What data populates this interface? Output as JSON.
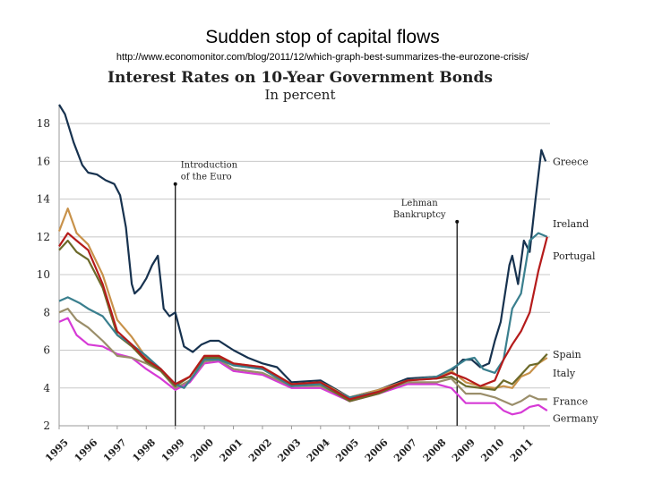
{
  "slide": {
    "title": "Sudden stop of capital flows",
    "url": "http://www.economonitor.com/blog/2011/12/which-graph-best-summarizes-the-eurozone-crisis/"
  },
  "chart_data": {
    "type": "line",
    "title": "Interest Rates on 10-Year Government Bonds",
    "subtitle": "In percent",
    "ylim": [
      2,
      19
    ],
    "yticks": [
      2,
      4,
      6,
      8,
      10,
      12,
      14,
      16,
      18
    ],
    "xlim": [
      1995,
      2011.9
    ],
    "xticks": [
      1995,
      1996,
      1997,
      1998,
      1999,
      2000,
      2001,
      2002,
      2003,
      2004,
      2005,
      2006,
      2007,
      2008,
      2009,
      2010,
      2011
    ],
    "grid": true,
    "annotations": [
      {
        "lines": [
          "Introduction",
          "of the Euro"
        ],
        "x": 1999.0,
        "y_top": 14.8
      },
      {
        "lines": [
          "Lehman",
          "Bankruptcy"
        ],
        "x": 2008.7,
        "y_top": 12.8
      }
    ],
    "series": [
      {
        "name": "Greece",
        "color": "#17324f",
        "x": [
          1995.0,
          1995.2,
          1995.5,
          1995.8,
          1996.0,
          1996.3,
          1996.6,
          1996.9,
          1997.1,
          1997.3,
          1997.5,
          1997.6,
          1997.8,
          1998.0,
          1998.2,
          1998.4,
          1998.6,
          1998.8,
          1999.0,
          1999.3,
          1999.6,
          1999.9,
          2000.2,
          2000.5,
          2001.0,
          2001.5,
          2002.0,
          2002.5,
          2003.0,
          2004.0,
          2005.0,
          2005.5,
          2006.0,
          2007.0,
          2008.0,
          2008.5,
          2008.9,
          2009.2,
          2009.5,
          2009.8,
          2010.0,
          2010.2,
          2010.4,
          2010.5,
          2010.6,
          2010.8,
          2011.0,
          2011.2,
          2011.4,
          2011.6,
          2011.75
        ],
        "y": [
          19.0,
          18.5,
          17.0,
          15.8,
          15.4,
          15.3,
          15.0,
          14.8,
          14.2,
          12.5,
          9.5,
          9.0,
          9.3,
          9.8,
          10.5,
          11.0,
          8.2,
          7.8,
          8.0,
          6.2,
          5.9,
          6.3,
          6.5,
          6.5,
          6.0,
          5.6,
          5.3,
          5.1,
          4.3,
          4.4,
          3.5,
          3.7,
          3.9,
          4.5,
          4.6,
          4.9,
          5.5,
          5.5,
          5.1,
          5.3,
          6.5,
          7.5,
          9.5,
          10.5,
          11.0,
          9.5,
          11.8,
          11.2,
          14.0,
          16.6,
          16.0
        ]
      },
      {
        "name": "Ireland",
        "color": "#3a7f8e",
        "x": [
          1995.0,
          1995.3,
          1995.7,
          1996.0,
          1996.5,
          1997.0,
          1997.5,
          1998.0,
          1998.5,
          1999.0,
          1999.3,
          1999.6,
          2000.0,
          2000.5,
          2001.0,
          2002.0,
          2003.0,
          2004.0,
          2005.0,
          2006.0,
          2007.0,
          2008.0,
          2008.5,
          2009.0,
          2009.3,
          2009.6,
          2010.0,
          2010.3,
          2010.6,
          2010.9,
          2011.2,
          2011.5,
          2011.8
        ],
        "y": [
          8.6,
          8.8,
          8.5,
          8.2,
          7.8,
          6.8,
          6.3,
          5.7,
          5.0,
          4.2,
          4.0,
          4.6,
          5.5,
          5.5,
          5.2,
          5.0,
          4.1,
          4.2,
          3.5,
          3.8,
          4.4,
          4.6,
          5.0,
          5.5,
          5.6,
          5.0,
          4.8,
          5.5,
          8.2,
          9.0,
          11.8,
          12.2,
          12.0
        ]
      },
      {
        "name": "Portugal",
        "color": "#b51b1b",
        "x": [
          1995.0,
          1995.3,
          1995.6,
          1996.0,
          1996.5,
          1997.0,
          1997.5,
          1998.0,
          1998.5,
          1999.0,
          1999.5,
          2000.0,
          2000.5,
          2001.0,
          2002.0,
          2003.0,
          2004.0,
          2005.0,
          2006.0,
          2007.0,
          2008.0,
          2008.5,
          2009.0,
          2009.5,
          2010.0,
          2010.3,
          2010.6,
          2010.9,
          2011.2,
          2011.5,
          2011.8
        ],
        "y": [
          11.5,
          12.2,
          11.8,
          11.3,
          9.5,
          7.0,
          6.3,
          5.5,
          5.0,
          4.2,
          4.6,
          5.7,
          5.7,
          5.3,
          5.1,
          4.2,
          4.3,
          3.4,
          3.8,
          4.4,
          4.5,
          4.8,
          4.5,
          4.1,
          4.4,
          5.5,
          6.3,
          7.0,
          8.0,
          10.2,
          12.0
        ]
      },
      {
        "name": "Spain",
        "color": "#6c6a2a",
        "x": [
          1995.0,
          1995.3,
          1995.6,
          1996.0,
          1996.5,
          1997.0,
          1997.5,
          1998.0,
          1998.5,
          1999.0,
          1999.5,
          2000.0,
          2000.5,
          2001.0,
          2002.0,
          2003.0,
          2004.0,
          2005.0,
          2006.0,
          2007.0,
          2008.0,
          2008.5,
          2009.0,
          2009.5,
          2010.0,
          2010.3,
          2010.6,
          2010.9,
          2011.2,
          2011.5,
          2011.8
        ],
        "y": [
          11.3,
          11.8,
          11.2,
          10.8,
          9.3,
          6.8,
          6.2,
          5.4,
          4.9,
          4.1,
          4.6,
          5.6,
          5.6,
          5.2,
          5.0,
          4.1,
          4.2,
          3.3,
          3.7,
          4.4,
          4.5,
          4.6,
          4.1,
          4.0,
          3.9,
          4.4,
          4.2,
          4.7,
          5.2,
          5.3,
          5.8
        ]
      },
      {
        "name": "Italy",
        "color": "#c8924a",
        "x": [
          1995.0,
          1995.3,
          1995.6,
          1996.0,
          1996.5,
          1997.0,
          1997.5,
          1998.0,
          1998.5,
          1999.0,
          1999.5,
          2000.0,
          2000.5,
          2001.0,
          2002.0,
          2003.0,
          2004.0,
          2005.0,
          2006.0,
          2007.0,
          2008.0,
          2008.5,
          2009.0,
          2009.5,
          2010.0,
          2010.3,
          2010.6,
          2010.9,
          2011.2,
          2011.5,
          2011.8
        ],
        "y": [
          12.3,
          13.5,
          12.2,
          11.6,
          10.0,
          7.6,
          6.7,
          5.6,
          5.0,
          4.2,
          4.6,
          5.7,
          5.7,
          5.3,
          5.1,
          4.2,
          4.3,
          3.5,
          3.9,
          4.4,
          4.6,
          4.9,
          4.3,
          4.1,
          4.0,
          4.1,
          4.0,
          4.6,
          4.8,
          5.3,
          5.6
        ]
      },
      {
        "name": "France",
        "color": "#9a8e6a",
        "x": [
          1995.0,
          1995.3,
          1995.6,
          1996.0,
          1996.5,
          1997.0,
          1997.5,
          1998.0,
          1998.5,
          1999.0,
          1999.5,
          2000.0,
          2000.5,
          2001.0,
          2002.0,
          2003.0,
          2004.0,
          2005.0,
          2006.0,
          2007.0,
          2008.0,
          2008.5,
          2009.0,
          2009.5,
          2010.0,
          2010.3,
          2010.6,
          2010.9,
          2011.2,
          2011.5,
          2011.8
        ],
        "y": [
          8.0,
          8.2,
          7.6,
          7.2,
          6.5,
          5.7,
          5.6,
          5.3,
          4.9,
          4.0,
          4.4,
          5.4,
          5.5,
          5.0,
          4.8,
          4.1,
          4.1,
          3.4,
          3.8,
          4.3,
          4.3,
          4.5,
          3.7,
          3.7,
          3.5,
          3.3,
          3.1,
          3.3,
          3.6,
          3.4,
          3.4
        ]
      },
      {
        "name": "Germany",
        "color": "#d63ad6",
        "x": [
          1995.0,
          1995.3,
          1995.6,
          1996.0,
          1996.5,
          1997.0,
          1997.5,
          1998.0,
          1998.5,
          1999.0,
          1999.5,
          2000.0,
          2000.5,
          2001.0,
          2002.0,
          2003.0,
          2004.0,
          2005.0,
          2006.0,
          2007.0,
          2008.0,
          2008.5,
          2009.0,
          2009.5,
          2010.0,
          2010.3,
          2010.6,
          2010.9,
          2011.2,
          2011.5,
          2011.8
        ],
        "y": [
          7.5,
          7.7,
          6.8,
          6.3,
          6.2,
          5.8,
          5.6,
          5.0,
          4.5,
          3.9,
          4.3,
          5.3,
          5.4,
          4.9,
          4.7,
          4.0,
          4.0,
          3.3,
          3.7,
          4.2,
          4.2,
          4.0,
          3.2,
          3.2,
          3.2,
          2.8,
          2.6,
          2.7,
          3.0,
          3.1,
          2.8
        ]
      }
    ]
  }
}
